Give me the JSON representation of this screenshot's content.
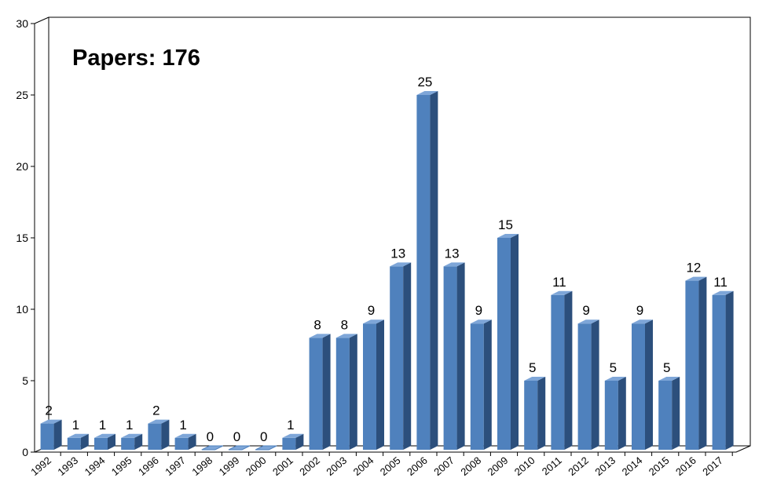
{
  "chart_data": {
    "type": "bar",
    "title": "Papers: 176",
    "categories": [
      "1992",
      "1993",
      "1994",
      "1995",
      "1996",
      "1997",
      "1998",
      "1999",
      "2000",
      "2001",
      "2002",
      "2003",
      "2004",
      "2005",
      "2006",
      "2007",
      "2008",
      "2009",
      "2010",
      "2011",
      "2012",
      "2013",
      "2014",
      "2015",
      "2016",
      "2017"
    ],
    "values": [
      2,
      1,
      1,
      1,
      2,
      1,
      0,
      0,
      0,
      1,
      8,
      8,
      9,
      13,
      25,
      13,
      9,
      15,
      5,
      11,
      9,
      5,
      9,
      5,
      12,
      11
    ],
    "ylim": [
      0,
      30
    ],
    "yticks": [
      0,
      5,
      10,
      15,
      20,
      25,
      30
    ],
    "grid": false,
    "legend": "none",
    "style": "3d-column"
  },
  "colors": {
    "bar_front": "#4f81bd",
    "bar_side": "#2c4f7c",
    "bar_top": "#7ea6d8",
    "axis": "#000000",
    "background": "#ffffff"
  }
}
